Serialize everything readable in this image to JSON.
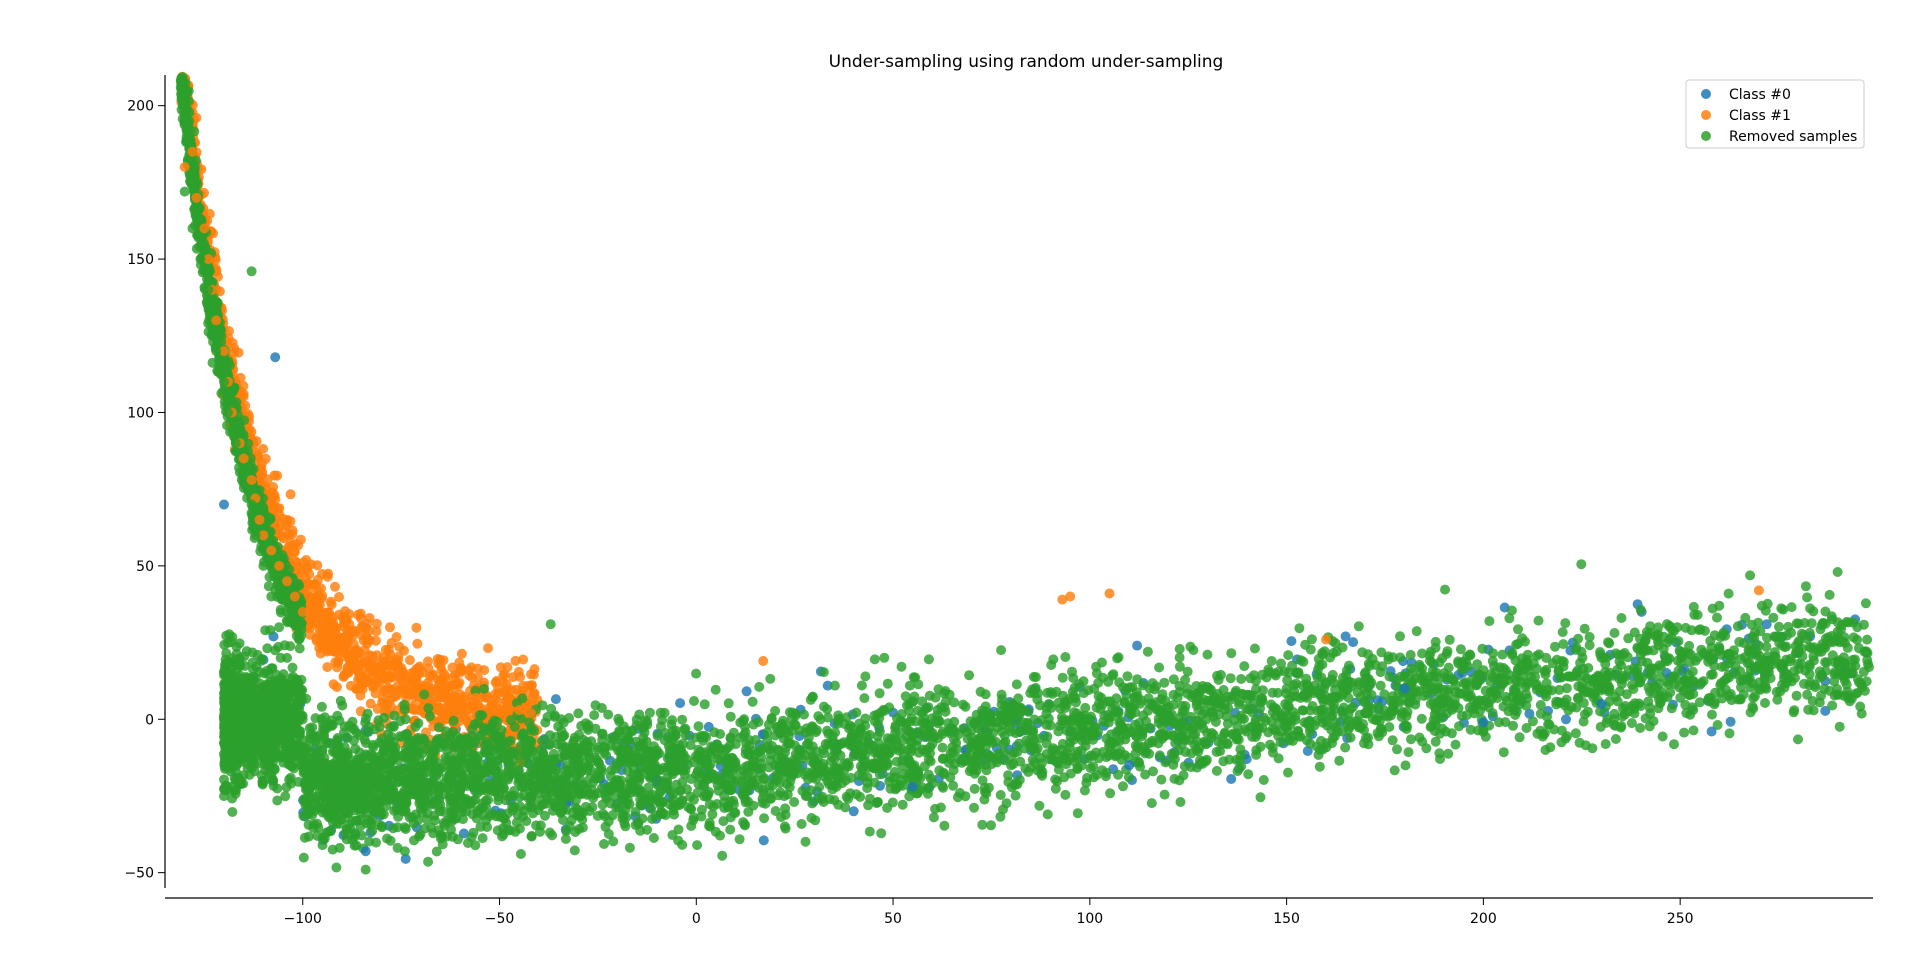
{
  "chart_data": {
    "type": "scatter",
    "title": "Under-sampling using random under-sampling",
    "xlabel": "",
    "ylabel": "",
    "xlim": [
      -135,
      299
    ],
    "ylim": [
      -55,
      210
    ],
    "x_ticks": [
      -100,
      -50,
      0,
      50,
      100,
      150,
      200,
      250
    ],
    "y_ticks": [
      -50,
      0,
      50,
      100,
      150,
      200
    ],
    "x_tick_labels": [
      "−100",
      "−50",
      "0",
      "50",
      "100",
      "150",
      "200",
      "250"
    ],
    "y_tick_labels": [
      "−50",
      "0",
      "50",
      "100",
      "150",
      "200"
    ],
    "grid": false,
    "legend_position": "upper right",
    "series": [
      {
        "name": "Class #0",
        "color": "#1f77b4",
        "points": [
          [
            -107,
            118
          ],
          [
            -120,
            70
          ],
          [
            -84,
            -43
          ],
          [
            112,
            24
          ],
          [
            258,
            -4
          ],
          [
            221,
            0
          ],
          [
            272,
            31
          ],
          [
            165,
            27
          ],
          [
            -10,
            -20
          ],
          [
            40,
            -30
          ],
          [
            110,
            -15
          ],
          [
            180,
            10
          ],
          [
            230,
            5
          ],
          [
            200,
            -1
          ],
          [
            55,
            -22
          ]
        ]
      },
      {
        "name": "Class #1",
        "color": "#ff7f0e",
        "points": [
          [
            -128,
            185
          ],
          [
            -130,
            180
          ],
          [
            -127,
            170
          ],
          [
            -125,
            160
          ],
          [
            -124,
            150
          ],
          [
            -123,
            140
          ],
          [
            -122,
            130
          ],
          [
            -120,
            120
          ],
          [
            -119,
            110
          ],
          [
            -118,
            100
          ],
          [
            -116,
            90
          ],
          [
            -115,
            85
          ],
          [
            -113,
            78
          ],
          [
            -112,
            72
          ],
          [
            -111,
            65
          ],
          [
            -110,
            60
          ],
          [
            -108,
            55
          ],
          [
            -106,
            50
          ],
          [
            -104,
            45
          ],
          [
            -102,
            40
          ],
          [
            -100,
            35
          ],
          [
            -98,
            30
          ],
          [
            -95,
            28
          ],
          [
            -92,
            25
          ],
          [
            -90,
            22
          ],
          [
            -87,
            20
          ],
          [
            -85,
            18
          ],
          [
            -82,
            16
          ],
          [
            -80,
            15
          ],
          [
            -78,
            14
          ],
          [
            -75,
            13
          ],
          [
            -72,
            12
          ],
          [
            -70,
            11
          ],
          [
            -67,
            10
          ],
          [
            -64,
            9
          ],
          [
            -60,
            8
          ],
          [
            -56,
            7
          ],
          [
            -52,
            5
          ],
          [
            -48,
            4
          ],
          [
            -45,
            3
          ],
          [
            -42,
            2
          ],
          [
            93,
            39
          ],
          [
            95,
            40
          ],
          [
            105,
            41
          ],
          [
            270,
            42
          ],
          [
            160,
            26
          ],
          [
            17,
            19
          ],
          [
            -48,
            17
          ],
          [
            -83,
            33
          ]
        ]
      },
      {
        "name": "Removed samples",
        "color": "#2ca02c",
        "points": [
          [
            -130,
            172
          ],
          [
            -128,
            160
          ],
          [
            -126,
            150
          ],
          [
            -124,
            140
          ],
          [
            -122,
            120
          ],
          [
            -120,
            110
          ],
          [
            -119,
            100
          ],
          [
            -117,
            90
          ],
          [
            -115,
            80
          ],
          [
            -113,
            70
          ],
          [
            -112,
            60
          ],
          [
            -110,
            50
          ],
          [
            -108,
            40
          ],
          [
            -106,
            30
          ],
          [
            -104,
            20
          ],
          [
            -102,
            10
          ],
          [
            -100,
            0
          ],
          [
            -98,
            -5
          ],
          [
            -95,
            -10
          ],
          [
            -90,
            -15
          ],
          [
            -85,
            -18
          ],
          [
            -80,
            -20
          ],
          [
            -70,
            -22
          ],
          [
            -60,
            -23
          ],
          [
            -50,
            -24
          ],
          [
            -40,
            -24
          ],
          [
            -30,
            -23
          ],
          [
            -20,
            -22
          ],
          [
            -10,
            -20
          ],
          [
            0,
            -18
          ],
          [
            10,
            -16
          ],
          [
            20,
            -15
          ],
          [
            30,
            -13
          ],
          [
            40,
            -12
          ],
          [
            50,
            -10
          ],
          [
            60,
            -8
          ],
          [
            70,
            -6
          ],
          [
            80,
            -4
          ],
          [
            90,
            -2
          ],
          [
            100,
            0
          ],
          [
            110,
            2
          ],
          [
            120,
            4
          ],
          [
            130,
            6
          ],
          [
            140,
            8
          ],
          [
            150,
            10
          ],
          [
            160,
            12
          ],
          [
            170,
            13
          ],
          [
            180,
            14
          ],
          [
            190,
            15
          ],
          [
            200,
            16
          ],
          [
            210,
            18
          ],
          [
            220,
            19
          ],
          [
            230,
            20
          ],
          [
            240,
            21
          ],
          [
            250,
            22
          ],
          [
            260,
            23
          ],
          [
            270,
            24
          ],
          [
            280,
            25
          ],
          [
            290,
            26
          ],
          [
            295,
            30
          ],
          [
            -84,
            -49
          ],
          [
            -113,
            146
          ],
          [
            -37,
            31
          ],
          [
            290,
            48
          ]
        ]
      }
    ],
    "clouds": [
      {
        "series": 2,
        "kind": "band",
        "x_range": [
          -120,
          298
        ],
        "n": 5200
      },
      {
        "series": 1,
        "kind": "tail",
        "x_range": [
          -131,
          -40
        ],
        "n": 1300
      },
      {
        "series": 2,
        "kind": "tail",
        "x_range": [
          -131,
          -100
        ],
        "n": 900
      },
      {
        "series": 0,
        "kind": "band",
        "x_range": [
          -110,
          295
        ],
        "n": 380
      }
    ]
  }
}
